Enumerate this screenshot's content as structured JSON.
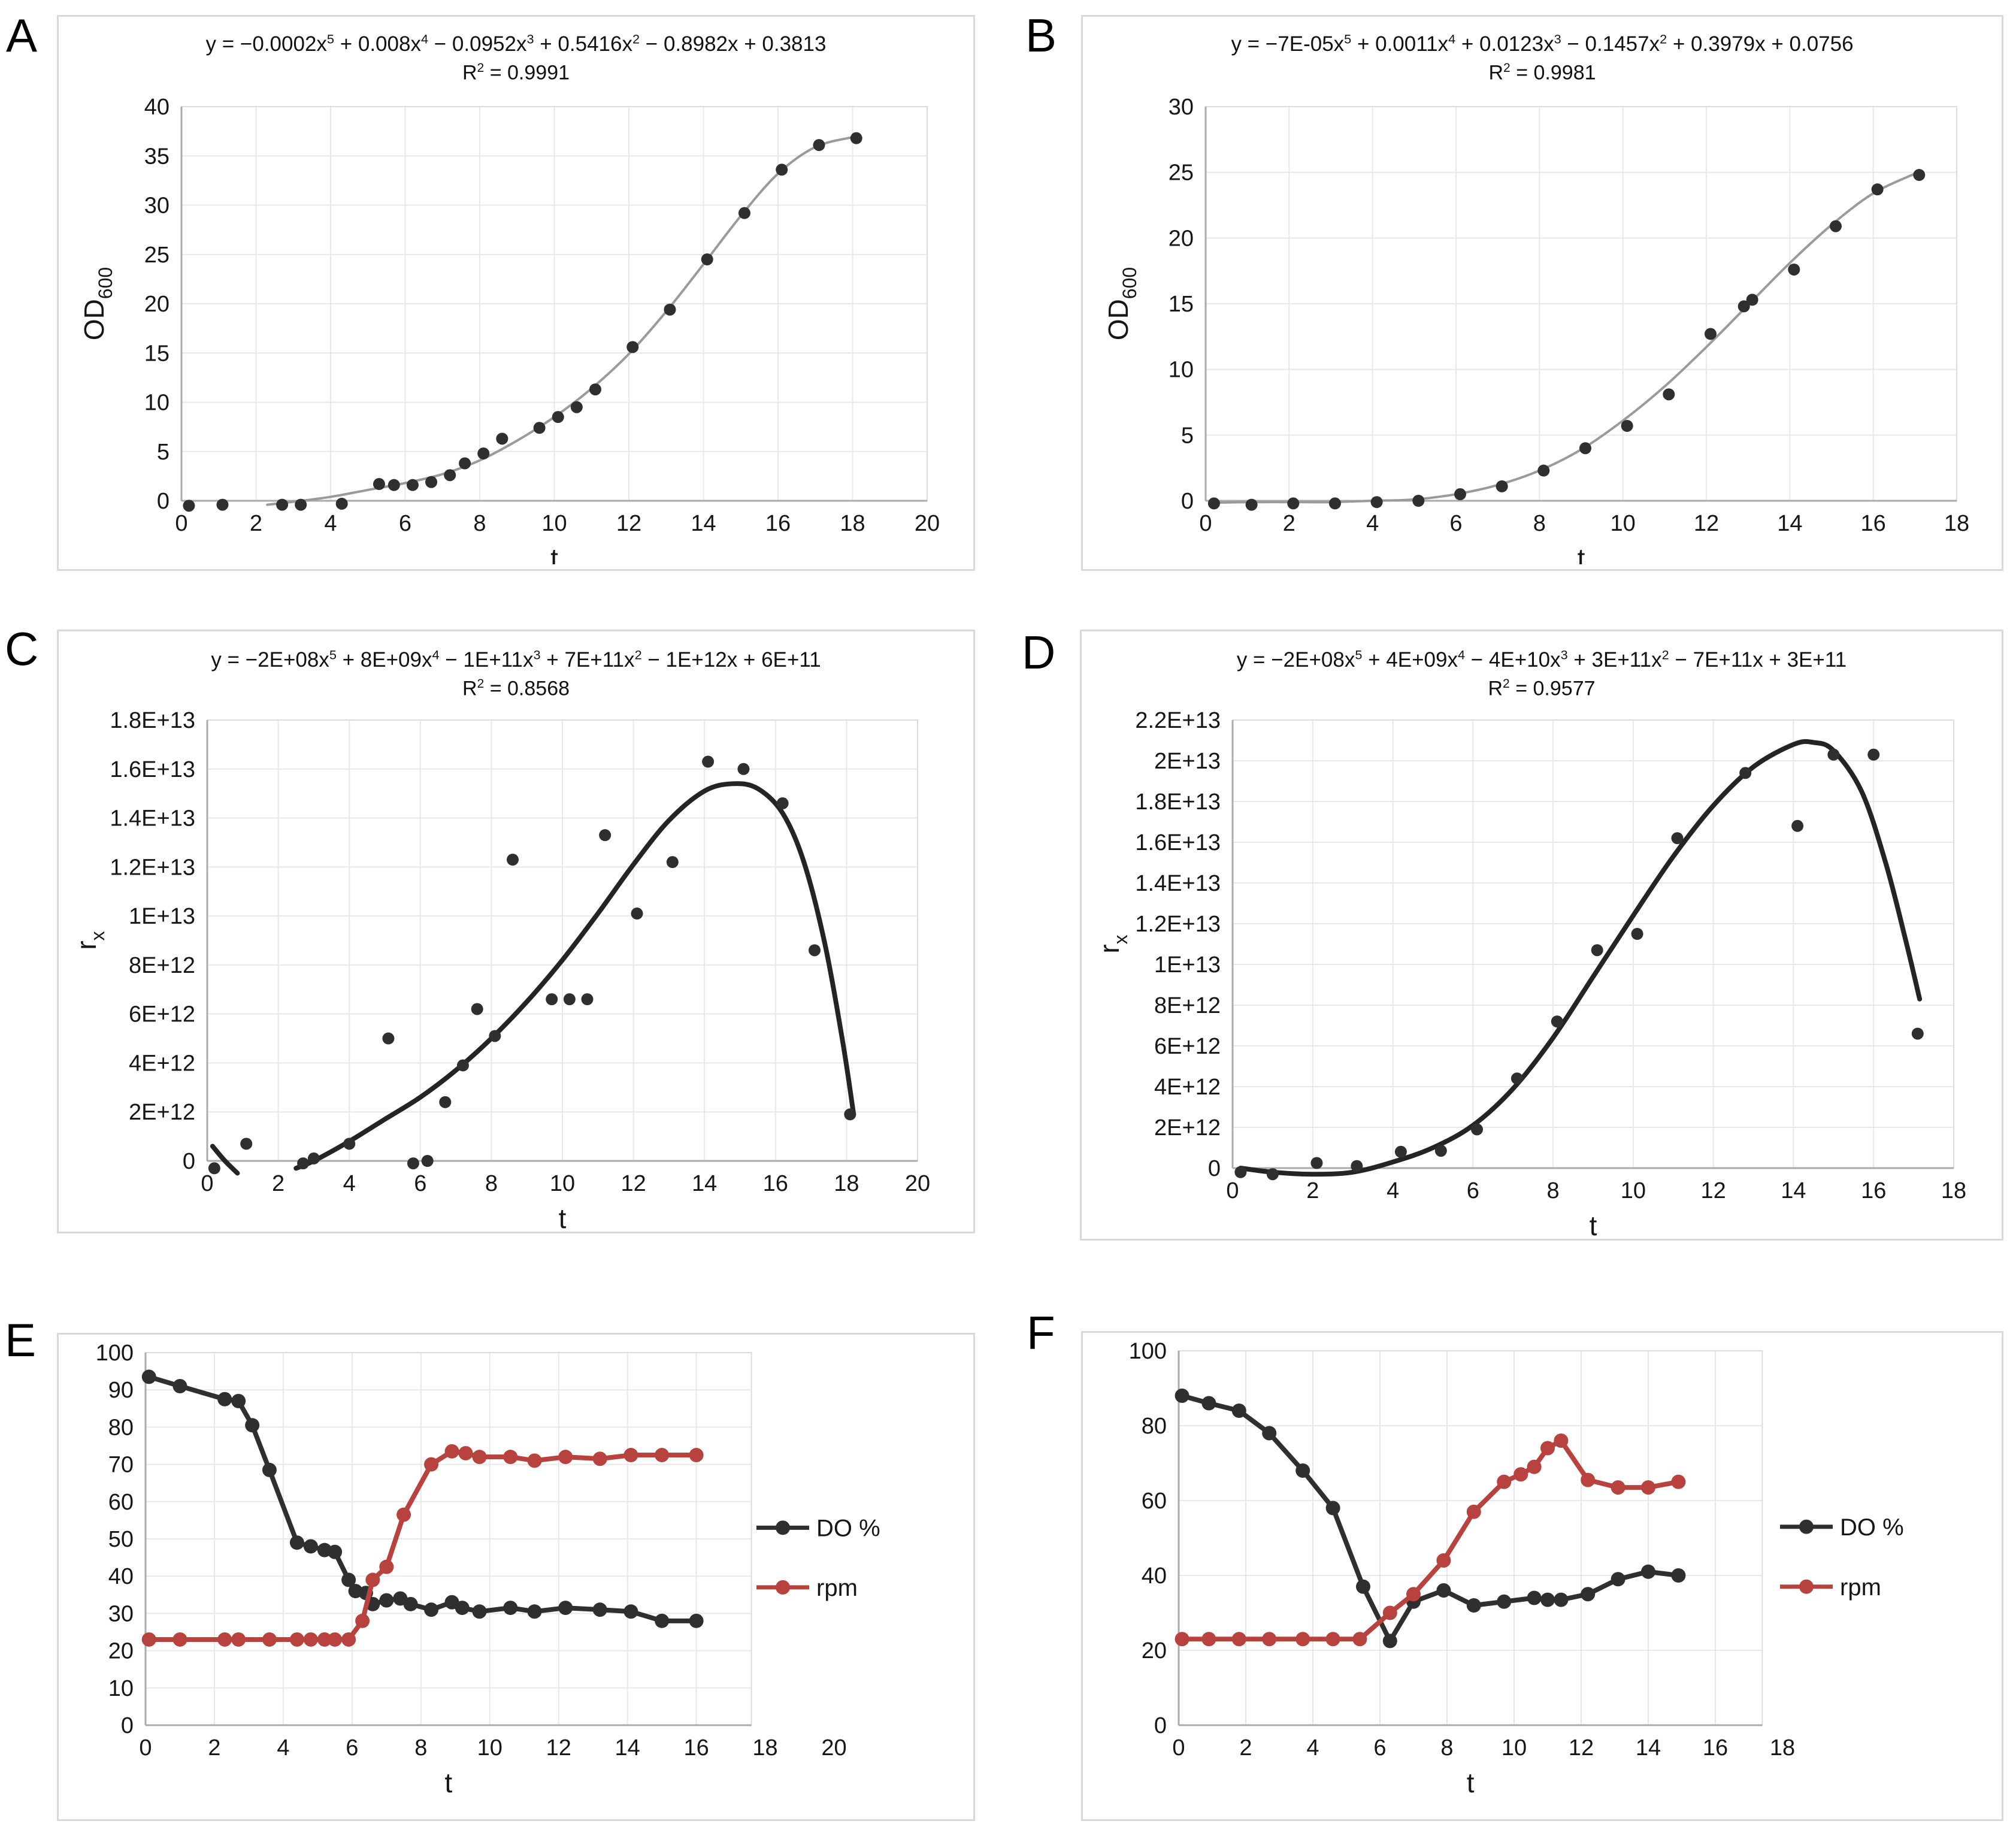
{
  "figure": {
    "panel_letters": [
      "A",
      "B",
      "C",
      "D",
      "E",
      "F"
    ]
  },
  "colors": {
    "points_black": "#2f2f2f",
    "fit_gray": "#9a9a9a",
    "fit_black": "#242424",
    "series_red": "#b8433e",
    "grid": "#e8e8e8",
    "axis": "#ababab"
  },
  "chart_data": [
    {
      "panel": "A",
      "type": "scatter",
      "equation": "y = −0.0002x^5 + 0.008x^4 − 0.0952x^3 + 0.5416x^2 − 0.8982x + 0.3813",
      "r2": "R^2 = 0.9991",
      "xlabel": "t",
      "ylabel": "OD",
      "ylabel_sub": "600",
      "xlim": [
        0,
        20
      ],
      "ylim": [
        0,
        40
      ],
      "xticks": [
        0,
        2,
        4,
        6,
        8,
        10,
        12,
        14,
        16,
        18,
        20
      ],
      "yticks": [
        0,
        5,
        10,
        15,
        20,
        25,
        30,
        35,
        40
      ],
      "grid": true,
      "point_color": "#2f2f2f",
      "fit_color": "#9a9a9a",
      "points": {
        "x": [
          0.2,
          1.1,
          2.7,
          3.2,
          4.3,
          5.3,
          5.7,
          6.2,
          6.7,
          7.2,
          7.6,
          8.1,
          8.6,
          9.6,
          10.1,
          10.6,
          11.1,
          12.1,
          13.1,
          14.1,
          15.1,
          16.1,
          17.1,
          18.1
        ],
        "y": [
          -0.5,
          -0.4,
          -0.4,
          -0.4,
          -0.3,
          1.7,
          1.6,
          1.6,
          1.9,
          2.6,
          3.8,
          4.8,
          6.3,
          7.4,
          8.5,
          9.5,
          11.3,
          15.6,
          19.4,
          24.5,
          29.2,
          33.6,
          36.1,
          36.8
        ]
      },
      "fit": {
        "x": [
          2.3,
          3,
          4,
          5,
          6,
          7,
          8,
          9,
          10,
          11,
          12,
          13,
          14,
          15,
          16,
          17,
          18
        ],
        "y": [
          -0.4,
          -0.1,
          0.4,
          1.1,
          1.8,
          2.7,
          4.1,
          6.1,
          8.5,
          11.4,
          14.9,
          19.2,
          24.0,
          28.9,
          33.2,
          35.9,
          36.9
        ]
      }
    },
    {
      "panel": "B",
      "type": "scatter",
      "equation": "y = −7E-05x^5 + 0.0011x^4 + 0.0123x^3 − 0.1457x^2 + 0.3979x + 0.0756",
      "r2": "R^2 = 0.9981",
      "xlabel": "t",
      "ylabel": "OD",
      "ylabel_sub": "600",
      "xlim": [
        0,
        18
      ],
      "ylim": [
        0,
        30
      ],
      "xticks": [
        0,
        2,
        4,
        6,
        8,
        10,
        12,
        14,
        16,
        18
      ],
      "yticks": [
        0,
        5,
        10,
        15,
        20,
        25,
        30
      ],
      "grid": true,
      "point_color": "#2f2f2f",
      "fit_color": "#9a9a9a",
      "points": {
        "x": [
          0.2,
          1.1,
          2.1,
          3.1,
          4.1,
          5.1,
          6.1,
          7.1,
          8.1,
          9.1,
          10.1,
          11.1,
          12.1,
          12.9,
          13.1,
          14.1,
          15.1,
          16.1,
          17.1
        ],
        "y": [
          -0.2,
          -0.3,
          -0.2,
          -0.2,
          -0.1,
          0,
          0.5,
          1.1,
          2.3,
          4.0,
          5.7,
          8.1,
          12.7,
          14.8,
          15.3,
          17.6,
          20.9,
          23.7,
          24.8
        ]
      },
      "fit": {
        "x": [
          0.2,
          1,
          2,
          3,
          4,
          5,
          6,
          7,
          8,
          9,
          10,
          11,
          12,
          13,
          14,
          15,
          16,
          17
        ],
        "y": [
          -0.15,
          -0.1,
          -0.1,
          -0.1,
          0,
          0.1,
          0.5,
          1.2,
          2.3,
          3.9,
          6.1,
          8.7,
          11.7,
          14.9,
          18.1,
          21.0,
          23.4,
          24.9
        ]
      }
    },
    {
      "panel": "C",
      "type": "scatter",
      "equation": "y = −2E+08x^5 + 8E+09x^4 − 1E+11x^3 + 7E+11x^2 − 1E+12x + 6E+11",
      "r2": "R^2 = 0.8568",
      "xlabel": "t",
      "ylabel": "r",
      "ylabel_sub": "x",
      "xlim": [
        0,
        20
      ],
      "ylim": [
        0,
        18000000000000.0
      ],
      "xticks": [
        0,
        2,
        4,
        6,
        8,
        10,
        12,
        14,
        16,
        18,
        20
      ],
      "yticks": [
        {
          "v": 0,
          "l": "0"
        },
        {
          "v": 2000000000000.0,
          "l": "2E+12"
        },
        {
          "v": 4000000000000.0,
          "l": "4E+12"
        },
        {
          "v": 6000000000000.0,
          "l": "6E+12"
        },
        {
          "v": 8000000000000.0,
          "l": "8E+12"
        },
        {
          "v": 10000000000000.0,
          "l": "1E+13"
        },
        {
          "v": 12000000000000.0,
          "l": "1.2E+13"
        },
        {
          "v": 14000000000000.0,
          "l": "1.4E+13"
        },
        {
          "v": 16000000000000.0,
          "l": "1.6E+13"
        },
        {
          "v": 18000000000000.0,
          "l": "1.8E+13"
        }
      ],
      "grid": true,
      "point_color": "#2f2f2f",
      "fit_color": "#242424",
      "points": {
        "x": [
          0.2,
          1.1,
          2.7,
          3.0,
          4.0,
          5.1,
          5.8,
          6.2,
          6.7,
          7.2,
          7.6,
          8.1,
          8.6,
          9.7,
          10.2,
          10.7,
          11.2,
          12.1,
          13.1,
          14.1,
          15.1,
          16.2,
          17.1,
          18.1
        ],
        "y": [
          -300000000000.0,
          700000000000.0,
          -100000000000.0,
          100000000000.0,
          700000000000.0,
          5000000000000.0,
          -100000000000.0,
          0,
          2400000000000.0,
          3900000000000.0,
          6200000000000.0,
          5100000000000.0,
          12300000000000.0,
          6600000000000.0,
          6600000000000.0,
          6600000000000.0,
          13300000000000.0,
          10100000000000.0,
          12200000000000.0,
          16300000000000.0,
          16000000000000.0,
          14600000000000.0,
          8600000000000.0,
          1900000000000.0
        ]
      },
      "fit": {
        "x": [
          2.5,
          3,
          4,
          5,
          6,
          7,
          8,
          9,
          10,
          11,
          12,
          13,
          14,
          14.8,
          15.5,
          16.2,
          16.8,
          17.4,
          17.9,
          18.2
        ],
        "y": [
          -300000000000.0,
          0,
          800000000000.0,
          1700000000000.0,
          2600000000000.0,
          3700000000000.0,
          5000000000000.0,
          6500000000000.0,
          8200000000000.0,
          10100000000000.0,
          12100000000000.0,
          13900000000000.0,
          15100000000000.0,
          15400000000000.0,
          15200000000000.0,
          14200000000000.0,
          12200000000000.0,
          8800000000000.0,
          4800000000000.0,
          1900000000000.0
        ]
      },
      "fit2": {
        "x": [
          0.15,
          0.5,
          0.85
        ],
        "y": [
          600000000000.0,
          0,
          -500000000000.0
        ]
      }
    },
    {
      "panel": "D",
      "type": "scatter",
      "equation": "y = −2E+08x^5 + 4E+09x^4 − 4E+10x^3 + 3E+11x^2 − 7E+11x + 3E+11",
      "r2": "R^2 = 0.9577",
      "xlabel": "t",
      "ylabel": "r",
      "ylabel_sub": "x",
      "xlim": [
        0,
        18
      ],
      "ylim": [
        0,
        22000000000000.0
      ],
      "xticks": [
        0,
        2,
        4,
        6,
        8,
        10,
        12,
        14,
        16,
        18
      ],
      "yticks": [
        {
          "v": 0,
          "l": "0"
        },
        {
          "v": 2000000000000.0,
          "l": "2E+12"
        },
        {
          "v": 4000000000000.0,
          "l": "4E+12"
        },
        {
          "v": 6000000000000.0,
          "l": "6E+12"
        },
        {
          "v": 8000000000000.0,
          "l": "8E+12"
        },
        {
          "v": 10000000000000.0,
          "l": "1E+13"
        },
        {
          "v": 12000000000000.0,
          "l": "1.2E+13"
        },
        {
          "v": 14000000000000.0,
          "l": "1.4E+13"
        },
        {
          "v": 16000000000000.0,
          "l": "1.6E+13"
        },
        {
          "v": 18000000000000.0,
          "l": "1.8E+13"
        },
        {
          "v": 20000000000000.0,
          "l": "2E+13"
        },
        {
          "v": 22000000000000.0,
          "l": "2.2E+13"
        }
      ],
      "grid": true,
      "point_color": "#2f2f2f",
      "fit_color": "#242424",
      "points": {
        "x": [
          0.2,
          1.0,
          2.1,
          3.1,
          4.2,
          5.2,
          6.1,
          7.1,
          8.1,
          9.1,
          10.1,
          11.1,
          12.8,
          14.1,
          15.0,
          16.0,
          17.1
        ],
        "y": [
          -200000000000.0,
          -300000000000.0,
          250000000000.0,
          100000000000.0,
          800000000000.0,
          850000000000.0,
          1900000000000.0,
          4400000000000.0,
          7200000000000.0,
          10700000000000.0,
          11500000000000.0,
          16200000000000.0,
          19400000000000.0,
          16800000000000.0,
          20300000000000.0,
          20300000000000.0,
          6600000000000.0
        ]
      },
      "fit": {
        "x": [
          0.2,
          1,
          2,
          3,
          4,
          5,
          6,
          7,
          8,
          9,
          10,
          11,
          12,
          13,
          14,
          14.5,
          15,
          15.7,
          16.3,
          16.8,
          17.15
        ],
        "y": [
          0,
          -200000000000.0,
          -300000000000.0,
          -200000000000.0,
          300000000000.0,
          1000000000000.0,
          2100000000000.0,
          3900000000000.0,
          6400000000000.0,
          9400000000000.0,
          12400000000000.0,
          15300000000000.0,
          17800000000000.0,
          19700000000000.0,
          20800000000000.0,
          20900000000000.0,
          20500000000000.0,
          18500000000000.0,
          15000000000000.0,
          11200000000000.0,
          8300000000000.0
        ]
      }
    },
    {
      "panel": "E",
      "type": "line",
      "xlabel": "t",
      "xlim": [
        0,
        21
      ],
      "frame_xmax": 17.6,
      "ylim": [
        0,
        100
      ],
      "xticks": [
        0,
        2,
        4,
        6,
        8,
        10,
        12,
        14,
        16,
        18,
        20
      ],
      "yticks": [
        0,
        10,
        20,
        30,
        40,
        50,
        60,
        70,
        80,
        90,
        100
      ],
      "grid": true,
      "legend": true,
      "series": [
        {
          "name": "DO %",
          "color": "#2f2f2f",
          "x": [
            0.1,
            1,
            2.3,
            2.7,
            3.1,
            3.6,
            4.4,
            4.8,
            5.2,
            5.5,
            5.9,
            6.1,
            6.4,
            6.6,
            7.0,
            7.4,
            7.7,
            8.3,
            8.9,
            9.2,
            9.7,
            10.6,
            11.3,
            12.2,
            13.2,
            14.1,
            15.0,
            16.0
          ],
          "y": [
            93.5,
            91,
            87.5,
            87,
            80.5,
            68.5,
            49,
            48,
            47,
            46.5,
            39,
            36,
            35.5,
            32.5,
            33.5,
            34,
            32.5,
            31,
            33,
            31.5,
            30.5,
            31.5,
            30.5,
            31.5,
            31,
            30.5,
            28,
            28
          ]
        },
        {
          "name": "rpm",
          "color": "#b8433e",
          "x": [
            0.1,
            1,
            2.3,
            2.7,
            3.6,
            4.4,
            4.8,
            5.2,
            5.5,
            5.9,
            6.3,
            6.6,
            7.0,
            7.5,
            8.3,
            8.9,
            9.3,
            9.7,
            10.6,
            11.3,
            12.2,
            13.2,
            14.1,
            15.0,
            16.0
          ],
          "y": [
            23,
            23,
            23,
            23,
            23,
            23,
            23,
            23,
            23,
            23,
            28,
            39,
            42.5,
            56.5,
            70,
            73.5,
            73,
            72,
            72,
            71,
            72,
            71.5,
            72.5,
            72.5,
            72.5
          ]
        }
      ]
    },
    {
      "panel": "F",
      "type": "line",
      "xlabel": "t",
      "xlim": [
        0,
        19
      ],
      "frame_xmax": 17.4,
      "ylim": [
        0,
        100
      ],
      "xticks": [
        0,
        2,
        4,
        6,
        8,
        10,
        12,
        14,
        16,
        18
      ],
      "yticks": [
        0,
        20,
        40,
        60,
        80,
        100
      ],
      "grid": true,
      "legend": true,
      "series": [
        {
          "name": "DO %",
          "color": "#2f2f2f",
          "x": [
            0.1,
            0.9,
            1.8,
            2.7,
            3.7,
            4.6,
            5.5,
            6.3,
            7.0,
            7.9,
            8.8,
            9.7,
            10.6,
            11.0,
            11.4,
            12.2,
            13.1,
            14.0,
            14.9
          ],
          "y": [
            88,
            86,
            84,
            78,
            68,
            58,
            37,
            22.5,
            33,
            36,
            32,
            33,
            34,
            33.5,
            33.5,
            35,
            39,
            41,
            40
          ]
        },
        {
          "name": "rpm",
          "color": "#b8433e",
          "x": [
            0.1,
            0.9,
            1.8,
            2.7,
            3.7,
            4.6,
            5.4,
            6.3,
            7.0,
            7.9,
            8.8,
            9.7,
            10.2,
            10.6,
            11.0,
            11.4,
            12.2,
            13.1,
            14.0,
            14.9
          ],
          "y": [
            23,
            23,
            23,
            23,
            23,
            23,
            23,
            30,
            35,
            44,
            57,
            65,
            67,
            69,
            74,
            76,
            65.5,
            63.5,
            63.5,
            65
          ]
        }
      ]
    }
  ]
}
